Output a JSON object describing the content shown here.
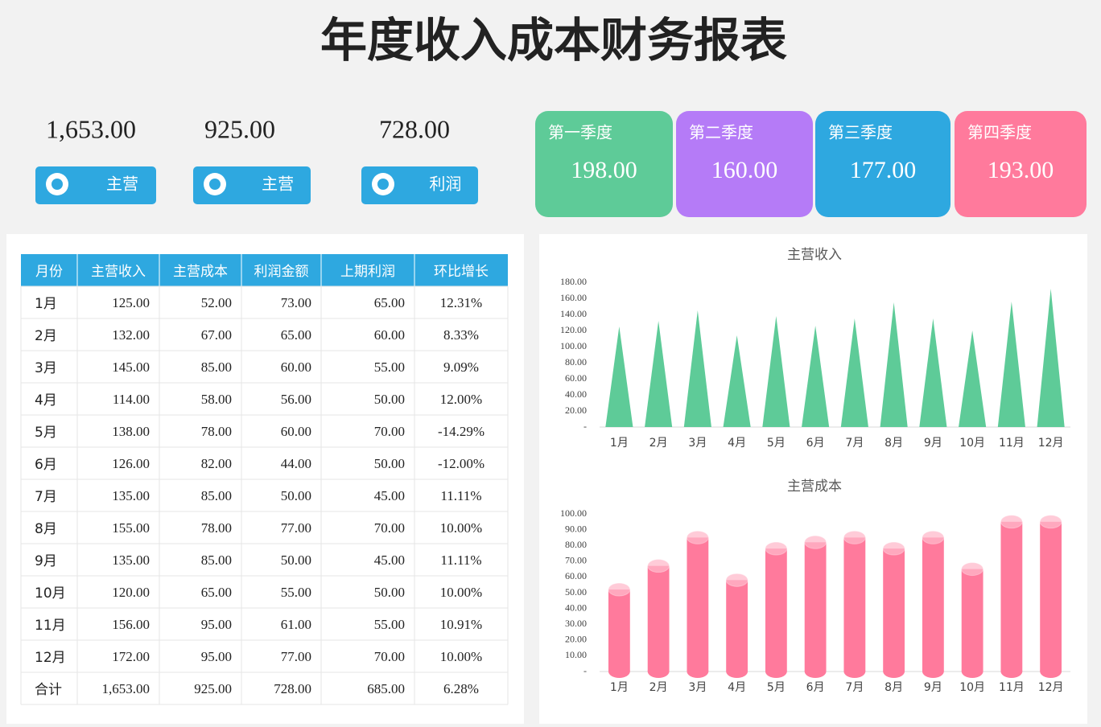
{
  "title": "年度收入成本财务报表",
  "kpis": [
    {
      "value": "1,653.00",
      "label": "主营"
    },
    {
      "value": "925.00",
      "label": "主营"
    },
    {
      "value": "728.00",
      "label": "利润"
    }
  ],
  "quarters": [
    {
      "label": "第一季度",
      "value": "198.00"
    },
    {
      "label": "第二季度",
      "value": "160.00"
    },
    {
      "label": "第三季度",
      "value": "177.00"
    },
    {
      "label": "第四季度",
      "value": "193.00"
    }
  ],
  "table": {
    "header": [
      "月份",
      "主营收入",
      "主营成本",
      "利润金额",
      "上期利润",
      "环比增长"
    ],
    "rows": [
      [
        "1月",
        "125.00",
        "52.00",
        "73.00",
        "65.00",
        "12.31%"
      ],
      [
        "2月",
        "132.00",
        "67.00",
        "65.00",
        "60.00",
        "8.33%"
      ],
      [
        "3月",
        "145.00",
        "85.00",
        "60.00",
        "55.00",
        "9.09%"
      ],
      [
        "4月",
        "114.00",
        "58.00",
        "56.00",
        "50.00",
        "12.00%"
      ],
      [
        "5月",
        "138.00",
        "78.00",
        "60.00",
        "70.00",
        "-14.29%"
      ],
      [
        "6月",
        "126.00",
        "82.00",
        "44.00",
        "50.00",
        "-12.00%"
      ],
      [
        "7月",
        "135.00",
        "85.00",
        "50.00",
        "45.00",
        "11.11%"
      ],
      [
        "8月",
        "155.00",
        "78.00",
        "77.00",
        "70.00",
        "10.00%"
      ],
      [
        "9月",
        "135.00",
        "85.00",
        "50.00",
        "45.00",
        "11.11%"
      ],
      [
        "10月",
        "120.00",
        "65.00",
        "55.00",
        "50.00",
        "10.00%"
      ],
      [
        "11月",
        "156.00",
        "95.00",
        "61.00",
        "55.00",
        "10.91%"
      ],
      [
        "12月",
        "172.00",
        "95.00",
        "77.00",
        "70.00",
        "10.00%"
      ],
      [
        "合计",
        "1,653.00",
        "925.00",
        "728.00",
        "685.00",
        "6.28%"
      ]
    ]
  },
  "chart_data": [
    {
      "type": "bar",
      "bar_shape": "triangle",
      "title": "主营收入",
      "color": "#5ecb98",
      "categories": [
        "1月",
        "2月",
        "3月",
        "4月",
        "5月",
        "6月",
        "7月",
        "8月",
        "9月",
        "10月",
        "11月",
        "12月"
      ],
      "values": [
        125,
        132,
        145,
        114,
        138,
        126,
        135,
        155,
        135,
        120,
        156,
        172
      ],
      "ylim": [
        0,
        180
      ],
      "yticks": [
        {
          "value": 0,
          "label": "-"
        },
        {
          "value": 20,
          "label": "20.00"
        },
        {
          "value": 40,
          "label": "40.00"
        },
        {
          "value": 60,
          "label": "60.00"
        },
        {
          "value": 80,
          "label": "80.00"
        },
        {
          "value": 100,
          "label": "100.00"
        },
        {
          "value": 120,
          "label": "120.00"
        },
        {
          "value": 140,
          "label": "140.00"
        },
        {
          "value": 160,
          "label": "160.00"
        },
        {
          "value": 180,
          "label": "180.00"
        }
      ]
    },
    {
      "type": "bar",
      "bar_shape": "cylinder",
      "title": "主营成本",
      "color": "#ff7a9c",
      "categories": [
        "1月",
        "2月",
        "3月",
        "4月",
        "5月",
        "6月",
        "7月",
        "8月",
        "9月",
        "10月",
        "11月",
        "12月"
      ],
      "values": [
        52,
        67,
        85,
        58,
        78,
        82,
        85,
        78,
        85,
        65,
        95,
        95
      ],
      "ylim": [
        0,
        100
      ],
      "yticks": [
        {
          "value": 0,
          "label": "-"
        },
        {
          "value": 10,
          "label": "10.00"
        },
        {
          "value": 20,
          "label": "20.00"
        },
        {
          "value": 30,
          "label": "30.00"
        },
        {
          "value": 40,
          "label": "40.00"
        },
        {
          "value": 50,
          "label": "50.00"
        },
        {
          "value": 60,
          "label": "60.00"
        },
        {
          "value": 70,
          "label": "70.00"
        },
        {
          "value": 80,
          "label": "80.00"
        },
        {
          "value": 90,
          "label": "90.00"
        },
        {
          "value": 100,
          "label": "100.00"
        }
      ]
    }
  ]
}
